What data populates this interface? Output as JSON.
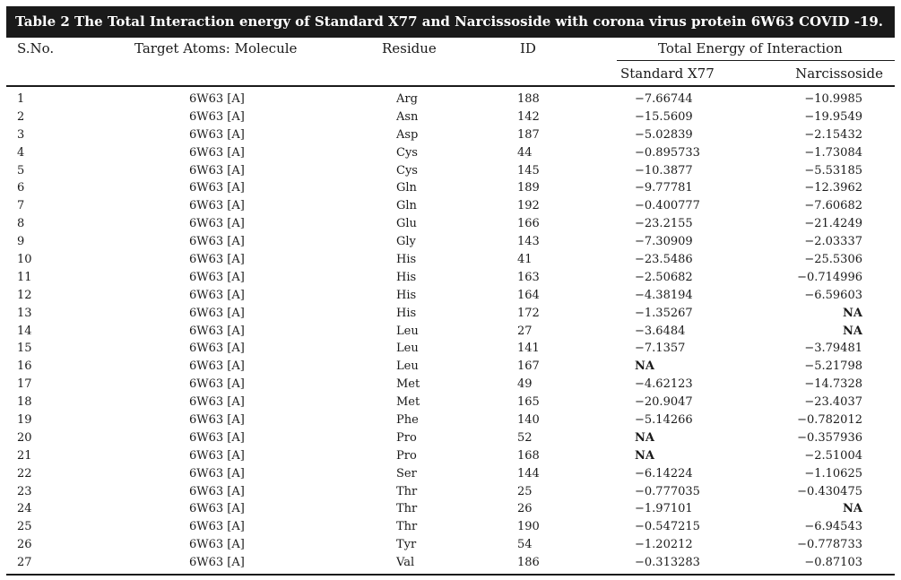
{
  "caption": "Table 2 The Total Interaction energy of Standard X77 and Narcissoside with corona virus protein 6W63 COVID -19.",
  "headers": {
    "sno": "S.No.",
    "target": "Target Atoms: Molecule",
    "residue": "Residue",
    "id": "ID",
    "total": "Total Energy of Interaction",
    "standard": "Standard X77",
    "narcissoside": "Narcissoside"
  },
  "rows": [
    {
      "sno": "1",
      "target": "6W63 [A]",
      "residue": "Arg",
      "id": "188",
      "standard": "−7.66744",
      "narcissoside": "−10.9985"
    },
    {
      "sno": "2",
      "target": "6W63 [A]",
      "residue": "Asn",
      "id": "142",
      "standard": "−15.5609",
      "narcissoside": "−19.9549"
    },
    {
      "sno": "3",
      "target": "6W63 [A]",
      "residue": "Asp",
      "id": "187",
      "standard": "−5.02839",
      "narcissoside": "−2.15432"
    },
    {
      "sno": "4",
      "target": "6W63 [A]",
      "residue": "Cys",
      "id": "44",
      "standard": "−0.895733",
      "narcissoside": "−1.73084"
    },
    {
      "sno": "5",
      "target": "6W63 [A]",
      "residue": "Cys",
      "id": "145",
      "standard": "−10.3877",
      "narcissoside": "−5.53185"
    },
    {
      "sno": "6",
      "target": "6W63 [A]",
      "residue": "Gln",
      "id": "189",
      "standard": "−9.77781",
      "narcissoside": "−12.3962"
    },
    {
      "sno": "7",
      "target": "6W63 [A]",
      "residue": "Gln",
      "id": "192",
      "standard": "−0.400777",
      "narcissoside": "−7.60682"
    },
    {
      "sno": "8",
      "target": "6W63 [A]",
      "residue": "Glu",
      "id": "166",
      "standard": "−23.2155",
      "narcissoside": "−21.4249"
    },
    {
      "sno": "9",
      "target": "6W63 [A]",
      "residue": "Gly",
      "id": "143",
      "standard": "−7.30909",
      "narcissoside": "−2.03337"
    },
    {
      "sno": "10",
      "target": "6W63 [A]",
      "residue": "His",
      "id": "41",
      "standard": "−23.5486",
      "narcissoside": "−25.5306"
    },
    {
      "sno": "11",
      "target": "6W63 [A]",
      "residue": "His",
      "id": "163",
      "standard": "−2.50682",
      "narcissoside": "−0.714996"
    },
    {
      "sno": "12",
      "target": "6W63 [A]",
      "residue": "His",
      "id": "164",
      "standard": "−4.38194",
      "narcissoside": "−6.59603"
    },
    {
      "sno": "13",
      "target": "6W63 [A]",
      "residue": "His",
      "id": "172",
      "standard": "−1.35267",
      "narcissoside": "NA"
    },
    {
      "sno": "14",
      "target": "6W63 [A]",
      "residue": "Leu",
      "id": "27",
      "standard": "−3.6484",
      "narcissoside": "NA"
    },
    {
      "sno": "15",
      "target": "6W63 [A]",
      "residue": "Leu",
      "id": "141",
      "standard": "−7.1357",
      "narcissoside": "−3.79481"
    },
    {
      "sno": "16",
      "target": "6W63 [A]",
      "residue": "Leu",
      "id": "167",
      "standard": "NA",
      "narcissoside": "−5.21798"
    },
    {
      "sno": "17",
      "target": "6W63 [A]",
      "residue": "Met",
      "id": "49",
      "standard": "−4.62123",
      "narcissoside": "−14.7328"
    },
    {
      "sno": "18",
      "target": "6W63 [A]",
      "residue": "Met",
      "id": "165",
      "standard": "−20.9047",
      "narcissoside": "−23.4037"
    },
    {
      "sno": "19",
      "target": "6W63 [A]",
      "residue": "Phe",
      "id": "140",
      "standard": "−5.14266",
      "narcissoside": "−0.782012"
    },
    {
      "sno": "20",
      "target": "6W63 [A]",
      "residue": "Pro",
      "id": "52",
      "standard": "NA",
      "narcissoside": "−0.357936"
    },
    {
      "sno": "21",
      "target": "6W63 [A]",
      "residue": "Pro",
      "id": "168",
      "standard": "NA",
      "narcissoside": "−2.51004"
    },
    {
      "sno": "22",
      "target": "6W63 [A]",
      "residue": "Ser",
      "id": "144",
      "standard": "−6.14224",
      "narcissoside": "−1.10625"
    },
    {
      "sno": "23",
      "target": "6W63 [A]",
      "residue": "Thr",
      "id": "25",
      "standard": "−0.777035",
      "narcissoside": "−0.430475"
    },
    {
      "sno": "24",
      "target": "6W63 [A]",
      "residue": "Thr",
      "id": "26",
      "standard": "−1.97101",
      "narcissoside": "NA"
    },
    {
      "sno": "25",
      "target": "6W63 [A]",
      "residue": "Thr",
      "id": "190",
      "standard": "−0.547215",
      "narcissoside": "−6.94543"
    },
    {
      "sno": "26",
      "target": "6W63 [A]",
      "residue": "Tyr",
      "id": "54",
      "standard": "−1.20212",
      "narcissoside": "−0.778733"
    },
    {
      "sno": "27",
      "target": "6W63 [A]",
      "residue": "Val",
      "id": "186",
      "standard": "−0.313283",
      "narcissoside": "−0.87103"
    }
  ]
}
